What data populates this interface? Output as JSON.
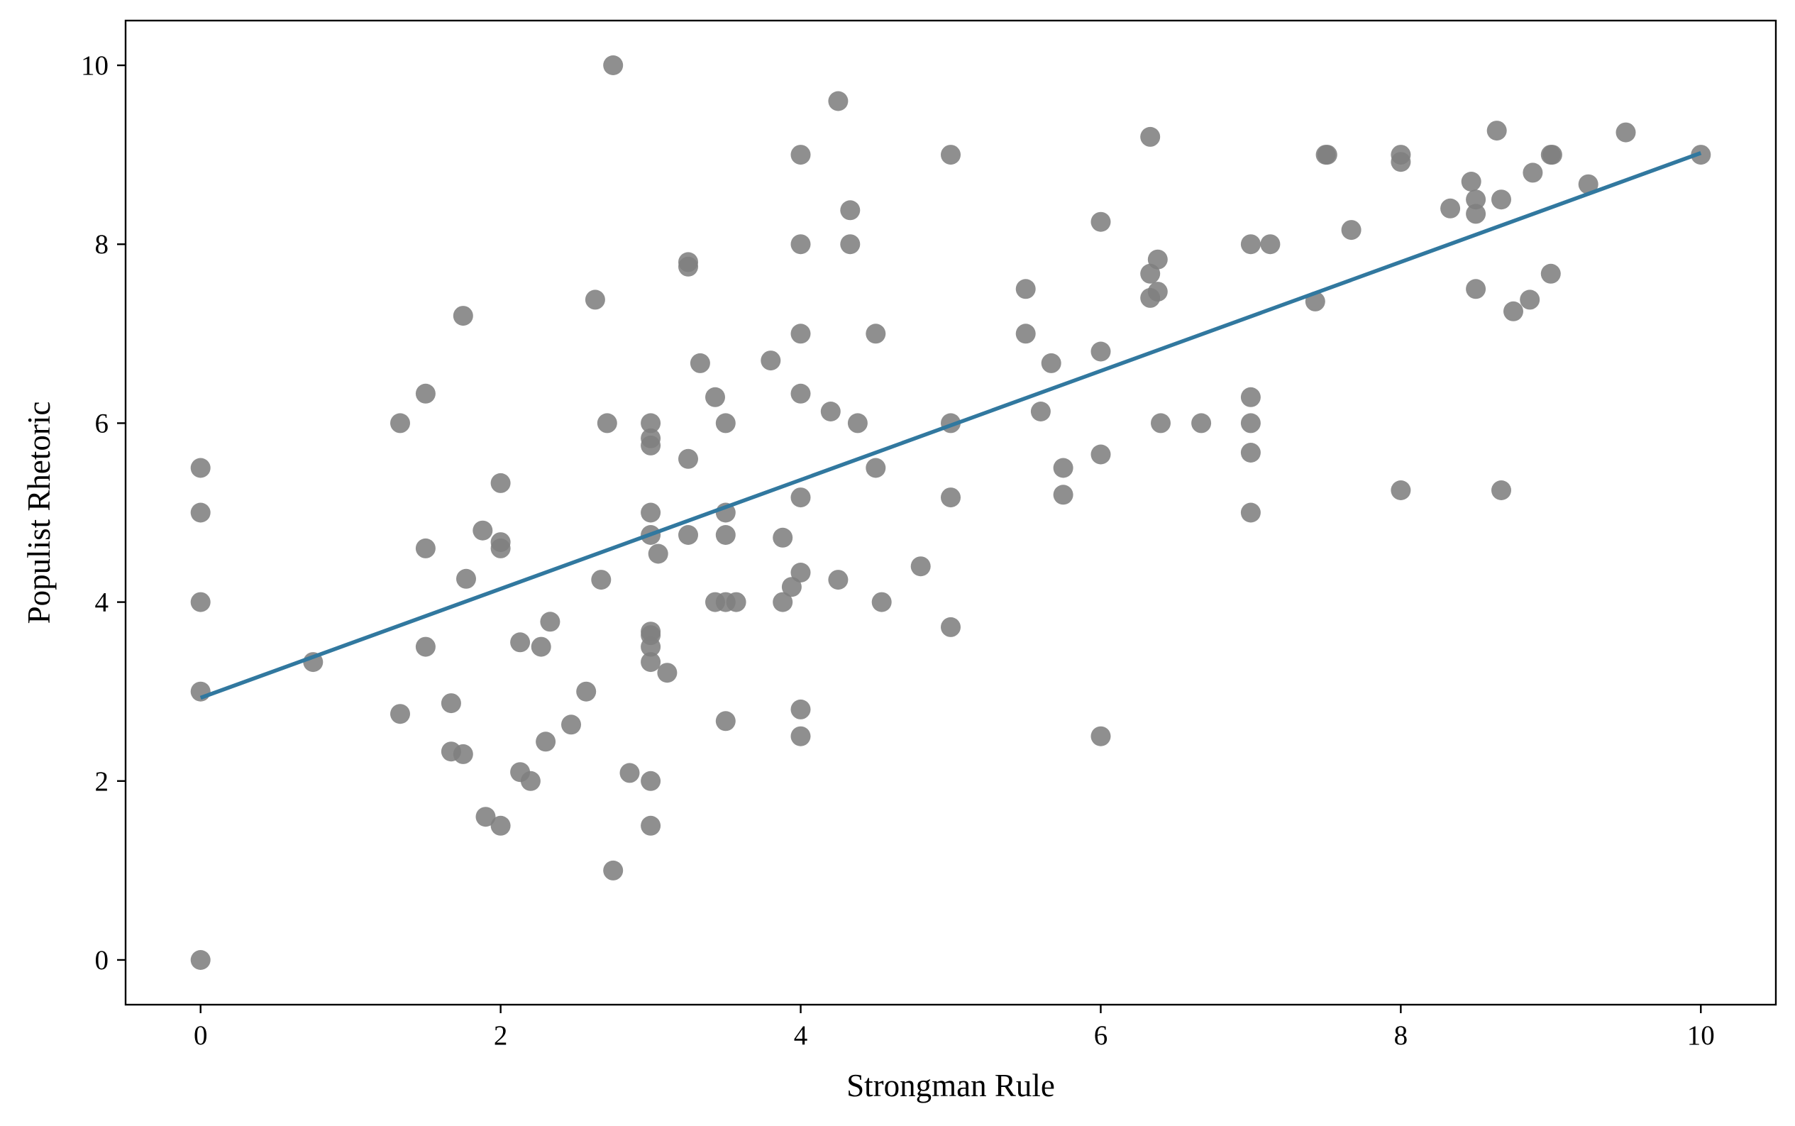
{
  "chart_data": {
    "type": "scatter",
    "title": "",
    "xlabel": "Strongman Rule",
    "ylabel": "Populist Rhetoric",
    "xlim": [
      -0.5,
      10.5
    ],
    "ylim": [
      -0.5,
      10.5
    ],
    "xticks": [
      0,
      2,
      4,
      6,
      8,
      10
    ],
    "yticks": [
      0,
      2,
      4,
      6,
      8,
      10
    ],
    "grid": false,
    "legend": "none",
    "point_color": "#808080",
    "line_color": "#31789f",
    "points": [
      [
        0,
        5.5
      ],
      [
        0,
        5.0
      ],
      [
        0,
        4.0
      ],
      [
        0,
        3.0
      ],
      [
        0,
        0.0
      ],
      [
        0.75,
        3.33
      ],
      [
        1.33,
        6.0
      ],
      [
        1.33,
        2.75
      ],
      [
        1.5,
        6.33
      ],
      [
        1.5,
        4.6
      ],
      [
        1.5,
        3.5
      ],
      [
        1.67,
        2.87
      ],
      [
        1.67,
        2.33
      ],
      [
        1.75,
        7.2
      ],
      [
        1.77,
        4.26
      ],
      [
        1.75,
        2.3
      ],
      [
        1.88,
        4.8
      ],
      [
        1.9,
        1.6
      ],
      [
        2.0,
        5.33
      ],
      [
        2.0,
        4.67
      ],
      [
        2.0,
        4.6
      ],
      [
        2.0,
        1.5
      ],
      [
        2.13,
        3.55
      ],
      [
        2.13,
        2.1
      ],
      [
        2.2,
        2.0
      ],
      [
        2.27,
        3.5
      ],
      [
        2.3,
        2.44
      ],
      [
        2.33,
        3.78
      ],
      [
        2.47,
        2.63
      ],
      [
        2.57,
        3.0
      ],
      [
        2.63,
        7.38
      ],
      [
        2.67,
        4.25
      ],
      [
        2.71,
        6.0
      ],
      [
        2.75,
        10.0
      ],
      [
        2.75,
        1.0
      ],
      [
        2.86,
        2.09
      ],
      [
        3.0,
        6.0
      ],
      [
        3.0,
        5.83
      ],
      [
        3.0,
        5.75
      ],
      [
        3.0,
        5.0
      ],
      [
        3.0,
        4.75
      ],
      [
        3.0,
        3.67
      ],
      [
        3.0,
        3.63
      ],
      [
        3.0,
        3.5
      ],
      [
        3.0,
        3.33
      ],
      [
        3.0,
        2.0
      ],
      [
        3.0,
        1.5
      ],
      [
        3.05,
        4.54
      ],
      [
        3.11,
        3.21
      ],
      [
        3.25,
        7.8
      ],
      [
        3.25,
        7.75
      ],
      [
        3.25,
        5.6
      ],
      [
        3.25,
        4.75
      ],
      [
        3.33,
        6.67
      ],
      [
        3.43,
        6.29
      ],
      [
        3.43,
        4.0
      ],
      [
        3.5,
        6.0
      ],
      [
        3.5,
        5.0
      ],
      [
        3.5,
        4.75
      ],
      [
        3.5,
        4.0
      ],
      [
        3.5,
        2.67
      ],
      [
        3.57,
        4.0
      ],
      [
        3.8,
        6.7
      ],
      [
        3.88,
        4.72
      ],
      [
        3.88,
        4.0
      ],
      [
        3.94,
        4.17
      ],
      [
        4.0,
        9.0
      ],
      [
        4.0,
        8.0
      ],
      [
        4.0,
        7.0
      ],
      [
        4.0,
        6.33
      ],
      [
        4.0,
        5.17
      ],
      [
        4.0,
        4.33
      ],
      [
        4.0,
        2.8
      ],
      [
        4.0,
        2.5
      ],
      [
        4.2,
        6.13
      ],
      [
        4.25,
        9.6
      ],
      [
        4.25,
        4.25
      ],
      [
        4.33,
        8.38
      ],
      [
        4.33,
        8.0
      ],
      [
        4.38,
        6.0
      ],
      [
        4.5,
        7.0
      ],
      [
        4.5,
        5.5
      ],
      [
        4.54,
        4.0
      ],
      [
        4.8,
        4.4
      ],
      [
        5.0,
        9.0
      ],
      [
        5.0,
        6.0
      ],
      [
        5.0,
        5.17
      ],
      [
        5.0,
        3.72
      ],
      [
        5.5,
        7.5
      ],
      [
        5.5,
        7.0
      ],
      [
        5.6,
        6.13
      ],
      [
        5.67,
        6.67
      ],
      [
        5.75,
        5.5
      ],
      [
        5.75,
        5.2
      ],
      [
        6.0,
        8.25
      ],
      [
        6.0,
        6.8
      ],
      [
        6.0,
        5.65
      ],
      [
        6.0,
        2.5
      ],
      [
        6.33,
        9.2
      ],
      [
        6.33,
        7.67
      ],
      [
        6.33,
        7.4
      ],
      [
        6.38,
        7.83
      ],
      [
        6.38,
        7.47
      ],
      [
        6.4,
        6.0
      ],
      [
        6.67,
        6.0
      ],
      [
        7.0,
        8.0
      ],
      [
        7.0,
        6.29
      ],
      [
        7.0,
        6.0
      ],
      [
        7.0,
        5.67
      ],
      [
        7.0,
        5.0
      ],
      [
        7.13,
        8.0
      ],
      [
        7.43,
        7.36
      ],
      [
        7.5,
        9.0
      ],
      [
        7.51,
        9.0
      ],
      [
        7.67,
        8.16
      ],
      [
        8.0,
        9.0
      ],
      [
        8.0,
        8.92
      ],
      [
        8.0,
        5.25
      ],
      [
        8.33,
        8.4
      ],
      [
        8.47,
        8.7
      ],
      [
        8.5,
        8.5
      ],
      [
        8.5,
        8.34
      ],
      [
        8.5,
        7.5
      ],
      [
        8.64,
        9.27
      ],
      [
        8.67,
        8.5
      ],
      [
        8.67,
        5.25
      ],
      [
        8.75,
        7.25
      ],
      [
        8.86,
        7.38
      ],
      [
        8.88,
        8.8
      ],
      [
        9.0,
        9.0
      ],
      [
        9.01,
        9.0
      ],
      [
        9.0,
        7.67
      ],
      [
        9.25,
        8.67
      ],
      [
        9.5,
        9.25
      ],
      [
        10.0,
        9.0
      ]
    ],
    "trend_line": {
      "x": [
        0,
        10
      ],
      "y": [
        2.93,
        9.02
      ]
    }
  }
}
